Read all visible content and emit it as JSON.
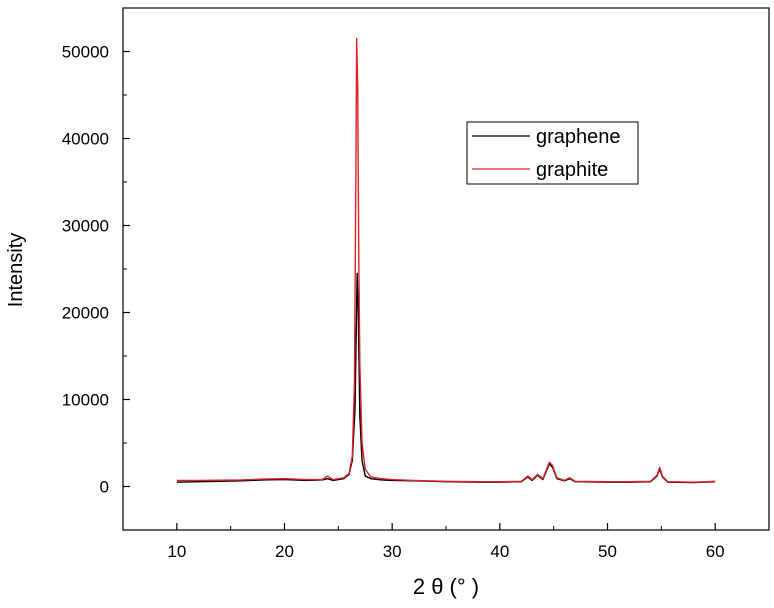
{
  "chart_data": {
    "type": "line",
    "title": "",
    "xlabel": "2 θ (°  )",
    "ylabel": "Intensity",
    "xlim": [
      5,
      65
    ],
    "ylim": [
      -5000,
      55000
    ],
    "xticks": [
      10,
      20,
      30,
      40,
      50,
      60
    ],
    "yticks": [
      0,
      10000,
      20000,
      30000,
      40000,
      50000
    ],
    "grid": false,
    "legend_position": "upper-right",
    "series": [
      {
        "name": "graphene",
        "color": "#000000",
        "points": [
          [
            10,
            500
          ],
          [
            12,
            550
          ],
          [
            14,
            600
          ],
          [
            16,
            650
          ],
          [
            18,
            750
          ],
          [
            20,
            800
          ],
          [
            22,
            700
          ],
          [
            23.5,
            750
          ],
          [
            24,
            900
          ],
          [
            24.5,
            700
          ],
          [
            25,
            800
          ],
          [
            25.5,
            900
          ],
          [
            26,
            1400
          ],
          [
            26.3,
            3000
          ],
          [
            26.55,
            9000
          ],
          [
            26.75,
            24500
          ],
          [
            26.85,
            20000
          ],
          [
            27.0,
            8000
          ],
          [
            27.2,
            3000
          ],
          [
            27.5,
            1200
          ],
          [
            28,
            900
          ],
          [
            29,
            750
          ],
          [
            30,
            700
          ],
          [
            32,
            650
          ],
          [
            35,
            550
          ],
          [
            38,
            500
          ],
          [
            40,
            500
          ],
          [
            42,
            550
          ],
          [
            42.6,
            1100
          ],
          [
            43,
            700
          ],
          [
            43.5,
            1300
          ],
          [
            44,
            800
          ],
          [
            44.6,
            2600
          ],
          [
            44.9,
            2200
          ],
          [
            45.3,
            900
          ],
          [
            46,
            650
          ],
          [
            46.5,
            900
          ],
          [
            47,
            550
          ],
          [
            50,
            500
          ],
          [
            52,
            500
          ],
          [
            54,
            550
          ],
          [
            54.6,
            1200
          ],
          [
            54.85,
            2000
          ],
          [
            55.1,
            1100
          ],
          [
            55.6,
            500
          ],
          [
            58,
            450
          ],
          [
            60,
            550
          ]
        ]
      },
      {
        "name": "graphite",
        "color": "#e0202a",
        "points": [
          [
            10,
            700
          ],
          [
            12,
            700
          ],
          [
            14,
            720
          ],
          [
            16,
            750
          ],
          [
            18,
            850
          ],
          [
            20,
            900
          ],
          [
            22,
            800
          ],
          [
            23.5,
            800
          ],
          [
            24,
            1200
          ],
          [
            24.5,
            800
          ],
          [
            25,
            900
          ],
          [
            25.5,
            1000
          ],
          [
            26,
            1500
          ],
          [
            26.3,
            3500
          ],
          [
            26.5,
            12000
          ],
          [
            26.65,
            40000
          ],
          [
            26.7,
            51500
          ],
          [
            26.8,
            46000
          ],
          [
            26.9,
            26000
          ],
          [
            27.0,
            14000
          ],
          [
            27.2,
            5000
          ],
          [
            27.5,
            2000
          ],
          [
            28,
            1100
          ],
          [
            29,
            900
          ],
          [
            30,
            800
          ],
          [
            32,
            700
          ],
          [
            35,
            600
          ],
          [
            38,
            550
          ],
          [
            40,
            550
          ],
          [
            42,
            600
          ],
          [
            42.6,
            1200
          ],
          [
            43,
            800
          ],
          [
            43.5,
            1400
          ],
          [
            44,
            900
          ],
          [
            44.6,
            2800
          ],
          [
            44.9,
            2400
          ],
          [
            45.3,
            1000
          ],
          [
            46,
            700
          ],
          [
            46.5,
            1000
          ],
          [
            47,
            600
          ],
          [
            50,
            550
          ],
          [
            52,
            550
          ],
          [
            54,
            600
          ],
          [
            54.6,
            1300
          ],
          [
            54.85,
            2200
          ],
          [
            55.1,
            1200
          ],
          [
            55.6,
            550
          ],
          [
            58,
            500
          ],
          [
            60,
            600
          ]
        ]
      }
    ]
  }
}
